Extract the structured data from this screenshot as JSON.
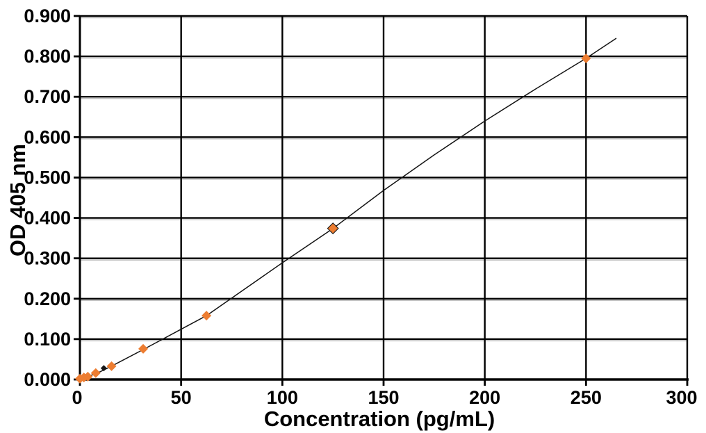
{
  "figure": {
    "background": "#ffffff"
  },
  "chart_data": {
    "type": "scatter",
    "title": "",
    "xlabel": "Concentration (pg/mL)",
    "ylabel": "OD 405 nm",
    "xlim": [
      0,
      300
    ],
    "ylim": [
      0.0,
      0.9
    ],
    "grid": true,
    "legend": "none",
    "axis_color": "#000000",
    "grid_color": "#000000",
    "grid_shadow_color": "#bfbfbf",
    "tick_label_color": "#000000",
    "xticks": {
      "values": [
        0,
        50,
        100,
        150,
        200,
        250,
        300
      ],
      "labels": [
        "0",
        "50",
        "100",
        "150",
        "200",
        "250",
        "300"
      ]
    },
    "yticks": {
      "values": [
        0.0,
        0.1,
        0.2,
        0.3,
        0.4,
        0.5,
        0.6,
        0.7,
        0.8,
        0.9
      ],
      "labels": [
        "0.000",
        "0.100",
        "0.200",
        "0.300",
        "0.400",
        "0.500",
        "0.600",
        "0.700",
        "0.800",
        "0.900"
      ]
    },
    "series": [
      {
        "name": "replicate-markers",
        "marker": "diamond",
        "color": "#161616",
        "size": 5,
        "sizes": [
          4.5,
          8.5
        ],
        "points": [
          [
            11.8,
            0.028
          ],
          [
            125,
            0.374
          ]
        ]
      },
      {
        "name": "standards",
        "marker": "diamond",
        "color": "#ED7D31",
        "size": 7,
        "points": [
          [
            0,
            0.002
          ],
          [
            1.95,
            0.005
          ],
          [
            3.91,
            0.007
          ],
          [
            7.81,
            0.016
          ],
          [
            15.63,
            0.033
          ],
          [
            31.25,
            0.076
          ],
          [
            62.5,
            0.158
          ],
          [
            125,
            0.374
          ],
          [
            250,
            0.795
          ]
        ]
      }
    ],
    "fit_line": {
      "color": "#141414",
      "width": 1.5,
      "points": [
        [
          0,
          0.002
        ],
        [
          4,
          0.008
        ],
        [
          7.81,
          0.014
        ],
        [
          15.63,
          0.033
        ],
        [
          31.25,
          0.074
        ],
        [
          62.5,
          0.158
        ],
        [
          100,
          0.289
        ],
        [
          125,
          0.374
        ],
        [
          150,
          0.468
        ],
        [
          175,
          0.556
        ],
        [
          200,
          0.64
        ],
        [
          225,
          0.719
        ],
        [
          250,
          0.795
        ],
        [
          265,
          0.845
        ]
      ]
    }
  }
}
